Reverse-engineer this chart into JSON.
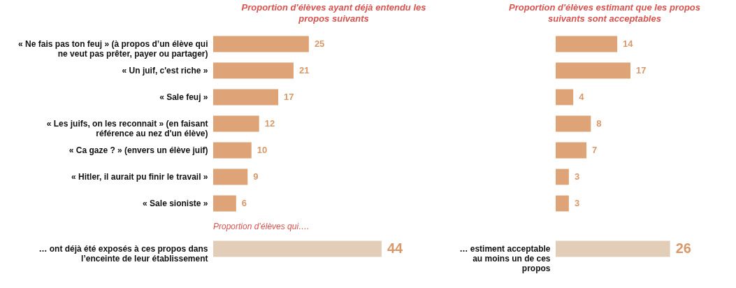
{
  "chart_data": [
    {
      "type": "bar",
      "orientation": "horizontal",
      "title": "Proportion d'élèves ayant déjà entendu les propos suivants",
      "categories": [
        "« Ne fais pas ton feuj » (à propos d’un élève qui ne veut pas prêter, payer ou partager)",
        "« Un juif, c'est riche »",
        "« Sale feuj »",
        "« Les juifs, on les reconnait » (en faisant référence au nez d'un élève)",
        "« Ca gaze ? » (envers un élève juif)",
        "« Hitler, il aurait pu finir le travail »",
        "« Sale sioniste »"
      ],
      "values": [
        25,
        21,
        17,
        12,
        10,
        9,
        6
      ],
      "color": "#dea477",
      "data_labels": true
    },
    {
      "type": "bar",
      "orientation": "horizontal",
      "title": "Proportion d'élèves estimant que les propos suivants sont acceptables",
      "categories": [
        null,
        null,
        null,
        null,
        null,
        null,
        null
      ],
      "values": [
        14,
        17,
        4,
        8,
        7,
        3,
        3
      ],
      "color": "#dea477",
      "data_labels": true
    },
    {
      "type": "bar",
      "orientation": "horizontal",
      "title": "Proportion d’élèves qui….",
      "categories": [
        "… ont déjà été exposés à ces propos dans l’enceinte de leur établissement"
      ],
      "values": [
        44
      ],
      "color": "#e2cdb9",
      "data_labels": true
    },
    {
      "type": "bar",
      "orientation": "horizontal",
      "categories": [
        "… estiment acceptable au moins un de ces propos"
      ],
      "values": [
        26
      ],
      "color": "#e2cdb9",
      "data_labels": true
    }
  ]
}
